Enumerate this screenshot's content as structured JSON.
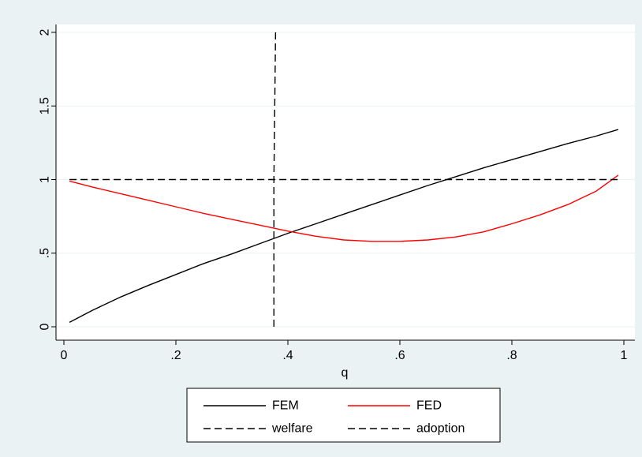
{
  "chart_data": {
    "type": "line",
    "title": "",
    "xlabel": "q",
    "ylabel": "",
    "xlim": [
      0,
      1
    ],
    "ylim": [
      0,
      2
    ],
    "x_ticks": [
      {
        "value": 0,
        "label": "0"
      },
      {
        "value": 0.2,
        "label": ".2"
      },
      {
        "value": 0.4,
        "label": ".4"
      },
      {
        "value": 0.6,
        "label": ".6"
      },
      {
        "value": 0.8,
        "label": ".8"
      },
      {
        "value": 1,
        "label": "1"
      }
    ],
    "y_ticks": [
      {
        "value": 0,
        "label": "0"
      },
      {
        "value": 0.5,
        "label": ".5"
      },
      {
        "value": 1,
        "label": "1"
      },
      {
        "value": 1.5,
        "label": "1.5"
      },
      {
        "value": 2,
        "label": "2"
      }
    ],
    "grid": "horizontal",
    "legend_position": "bottom",
    "series": [
      {
        "name": "FEM",
        "color": "#000000",
        "dash": "solid",
        "points": [
          [
            0.01,
            0.03
          ],
          [
            0.05,
            0.11
          ],
          [
            0.1,
            0.2
          ],
          [
            0.15,
            0.28
          ],
          [
            0.2,
            0.355
          ],
          [
            0.25,
            0.43
          ],
          [
            0.3,
            0.495
          ],
          [
            0.35,
            0.565
          ],
          [
            0.4,
            0.635
          ],
          [
            0.45,
            0.7
          ],
          [
            0.5,
            0.765
          ],
          [
            0.55,
            0.83
          ],
          [
            0.6,
            0.895
          ],
          [
            0.65,
            0.96
          ],
          [
            0.7,
            1.02
          ],
          [
            0.75,
            1.08
          ],
          [
            0.8,
            1.135
          ],
          [
            0.85,
            1.19
          ],
          [
            0.9,
            1.245
          ],
          [
            0.95,
            1.295
          ],
          [
            0.99,
            1.34
          ]
        ]
      },
      {
        "name": "FED",
        "color": "#ff0000",
        "dash": "solid",
        "points": [
          [
            0.01,
            0.99
          ],
          [
            0.05,
            0.95
          ],
          [
            0.1,
            0.905
          ],
          [
            0.15,
            0.86
          ],
          [
            0.2,
            0.815
          ],
          [
            0.25,
            0.77
          ],
          [
            0.3,
            0.73
          ],
          [
            0.35,
            0.69
          ],
          [
            0.4,
            0.65
          ],
          [
            0.45,
            0.615
          ],
          [
            0.5,
            0.59
          ],
          [
            0.55,
            0.58
          ],
          [
            0.6,
            0.58
          ],
          [
            0.65,
            0.59
          ],
          [
            0.7,
            0.61
          ],
          [
            0.75,
            0.645
          ],
          [
            0.8,
            0.7
          ],
          [
            0.85,
            0.76
          ],
          [
            0.9,
            0.83
          ],
          [
            0.95,
            0.92
          ],
          [
            0.99,
            1.03
          ]
        ]
      },
      {
        "name": "welfare",
        "color": "#000000",
        "dash": "dashed",
        "points": [
          [
            0.01,
            1.0
          ],
          [
            0.99,
            1.0
          ]
        ]
      },
      {
        "name": "adoption",
        "color": "#000000",
        "dash": "dashed",
        "points": [
          [
            0.375,
            0.0
          ],
          [
            0.375,
            1.0
          ],
          [
            0.378,
            2.0
          ]
        ]
      }
    ],
    "legend": [
      {
        "label": "FEM",
        "color": "#000000",
        "dash": "solid"
      },
      {
        "label": "FED",
        "color": "#ff0000",
        "dash": "solid"
      },
      {
        "label": "welfare",
        "color": "#000000",
        "dash": "dashed"
      },
      {
        "label": "adoption",
        "color": "#000000",
        "dash": "dashed"
      }
    ],
    "colors": {
      "outer_background": "#eaf2f3",
      "plot_background": "#ffffff",
      "grid": "#eaf2f3"
    }
  }
}
